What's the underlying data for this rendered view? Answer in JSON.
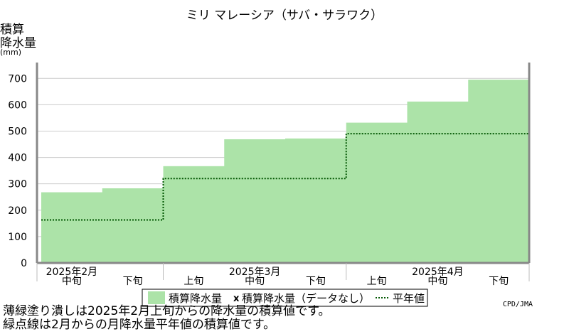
{
  "chart_data": {
    "type": "bar",
    "title": "ミリ マレーシア（サバ・サラワク）",
    "ylabel_lines": [
      "積算",
      "降水量",
      "(mm)"
    ],
    "yticks": [
      0,
      100,
      200,
      300,
      400,
      500,
      600,
      700
    ],
    "ylim": [
      0,
      760
    ],
    "grid": true,
    "periods": [
      "中旬",
      "下旬",
      "上旬",
      "中旬",
      "下旬",
      "上旬",
      "中旬",
      "下旬"
    ],
    "months": [
      {
        "label": "2025年2月"
      },
      {
        "label": "2025年3月"
      },
      {
        "label": "2025年4月"
      }
    ],
    "series": [
      {
        "name": "積算降水量",
        "values": [
          268,
          283,
          367,
          469,
          472,
          532,
          612,
          695
        ],
        "color": "#ace3a8"
      },
      {
        "name": "平年値",
        "values": [
          163,
          163,
          320,
          320,
          320,
          490,
          490,
          490
        ],
        "color": "#005500",
        "style": "dotted"
      }
    ],
    "legend": {
      "items": [
        "積算降水量",
        "積算降水量（データなし）",
        "平年値"
      ],
      "missing_marker": "x",
      "placement": "bottom"
    }
  },
  "credit": "CPD/JMA",
  "notes": [
    "薄緑塗り潰しは2025年2月上旬からの降水量の積算値です。",
    "緑点線は2月からの月降水量平年値の積算値です。"
  ]
}
